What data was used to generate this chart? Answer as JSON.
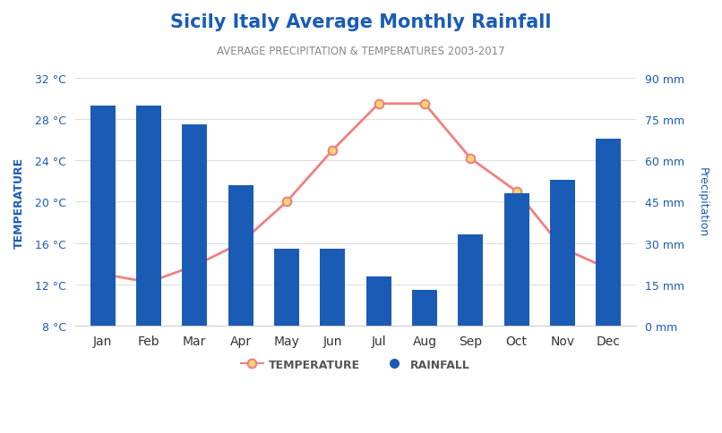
{
  "title": "Sicily Italy Average Monthly Rainfall",
  "subtitle": "AVERAGE PRECIPITATION & TEMPERATURES 2003-2017",
  "months": [
    "Jan",
    "Feb",
    "Mar",
    "Apr",
    "May",
    "Jun",
    "Jul",
    "Aug",
    "Sep",
    "Oct",
    "Nov",
    "Dec"
  ],
  "rainfall_mm": [
    80,
    80,
    73,
    51,
    28,
    28,
    18,
    13,
    33,
    48,
    53,
    68
  ],
  "temperature_c": [
    13.0,
    12.2,
    13.8,
    16.0,
    20.0,
    25.0,
    29.5,
    29.5,
    24.2,
    21.0,
    15.5,
    13.5
  ],
  "temp_ylim": [
    8,
    32
  ],
  "precip_ylim": [
    0,
    90
  ],
  "temp_ticks": [
    8,
    12,
    16,
    20,
    24,
    28,
    32
  ],
  "precip_ticks": [
    0,
    15,
    30,
    45,
    60,
    75,
    90
  ],
  "bar_color": "#1a5cb5",
  "line_color": "#f08080",
  "marker_face_color": "#f5d76e",
  "marker_edge_color": "#f08080",
  "title_color": "#1a5cb5",
  "subtitle_color": "#888888",
  "axis_label_color": "#1a5cb5",
  "tick_color": "#1a5cb5",
  "left_axis_label": "TEMPERATURE",
  "right_axis_label": "Precipitation",
  "background_color": "#ffffff",
  "grid_color": "#e0e0e0",
  "legend_temp_label": "TEMPERATURE",
  "legend_rain_label": "RAINFALL"
}
